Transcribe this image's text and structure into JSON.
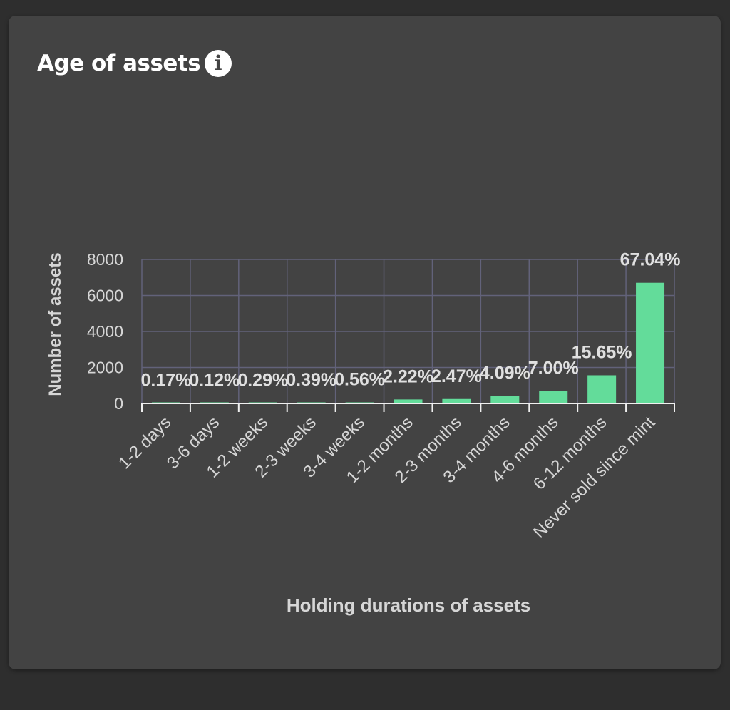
{
  "card": {
    "title": "Age of assets",
    "info_icon": "info-icon"
  },
  "colors": {
    "bar": "#63dc9a",
    "grid": "#62627a",
    "text": "#d6d6d6",
    "label": "#e0e0e0",
    "background": "#434343"
  },
  "chart_data": {
    "type": "bar",
    "title": "",
    "xlabel": "Holding durations of assets",
    "ylabel": "Number of assets",
    "ylim": [
      0,
      8000
    ],
    "yticks": [
      0,
      2000,
      4000,
      6000,
      8000
    ],
    "grid": true,
    "categories": [
      "1-2 days",
      "3-6 days",
      "1-2 weeks",
      "2-3 weeks",
      "3-4 weeks",
      "1-2 months",
      "2-3 months",
      "3-4 months",
      "4-6 months",
      "6-12 months",
      "Never sold since mint"
    ],
    "values": [
      17,
      12,
      29,
      39,
      56,
      222,
      247,
      409,
      700,
      1565,
      6704
    ],
    "data_labels": [
      "0.17%",
      "0.12%",
      "0.29%",
      "0.39%",
      "0.56%",
      "2.22%",
      "2.47%",
      "4.09%",
      "7.00%",
      "15.65%",
      "67.04%"
    ]
  }
}
